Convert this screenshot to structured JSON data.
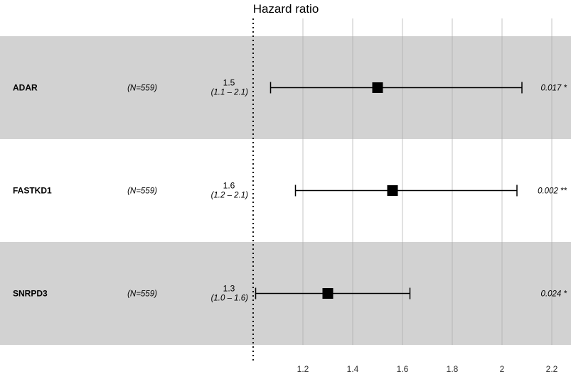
{
  "chart_data": {
    "type": "forest",
    "title": "Hazard ratio",
    "reference_line": 1.0,
    "xlim": [
      1.0,
      2.2
    ],
    "x_ticks": [
      {
        "value": 1.2,
        "label": "1.2"
      },
      {
        "value": 1.4,
        "label": "1.4"
      },
      {
        "value": 1.6,
        "label": "1.6"
      },
      {
        "value": 1.8,
        "label": "1.8"
      },
      {
        "value": 2.0,
        "label": "2"
      },
      {
        "value": 2.2,
        "label": "2.2"
      }
    ],
    "rows": [
      {
        "gene": "ADAR",
        "n": "(N=559)",
        "hr_label": "1.5",
        "ci_label": "(1.1 – 2.1)",
        "hr": 1.5,
        "lower": 1.07,
        "upper": 2.08,
        "p_label": "0.017 *",
        "shaded": true
      },
      {
        "gene": "FASTKD1",
        "n": "(N=559)",
        "hr_label": "1.6",
        "ci_label": "(1.2 – 2.1)",
        "hr": 1.56,
        "lower": 1.17,
        "upper": 2.06,
        "p_label": "0.002 **",
        "shaded": false
      },
      {
        "gene": "SNRPD3",
        "n": "(N=559)",
        "hr_label": "1.3",
        "ci_label": "(1.0 – 1.6)",
        "hr": 1.3,
        "lower": 1.01,
        "upper": 1.63,
        "p_label": "0.024 *",
        "shaded": true
      }
    ],
    "colors": {
      "band": "#d2d2d2",
      "grid": "#ababab",
      "point": "#000000"
    }
  }
}
